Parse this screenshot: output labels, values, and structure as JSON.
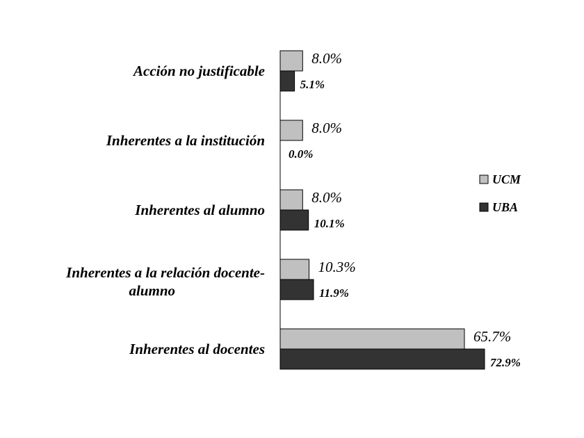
{
  "chart_data": {
    "type": "bar",
    "orientation": "horizontal",
    "categories": [
      [
        "Acción no justificable"
      ],
      [
        "Inherentes a la institución"
      ],
      [
        "Inherentes al alumno"
      ],
      [
        "Inherentes a la relación docente-",
        "alumno"
      ],
      [
        "Inherentes al docentes"
      ]
    ],
    "series": [
      {
        "name": "UCM",
        "values": [
          8.0,
          8.0,
          8.0,
          10.3,
          65.7
        ],
        "labels": [
          "8.0%",
          "8.0%",
          "8.0%",
          "10.3%",
          "65.7%"
        ],
        "color": "#c0c0c0"
      },
      {
        "name": "UBA",
        "values": [
          5.1,
          0.0,
          10.1,
          11.9,
          72.9
        ],
        "labels": [
          "5.1%",
          "0.0%",
          "10.1%",
          "11.9%",
          "72.9%"
        ],
        "color": "#333333"
      }
    ],
    "xlim": [
      0,
      80
    ],
    "grid": false,
    "legend_position": "right"
  }
}
